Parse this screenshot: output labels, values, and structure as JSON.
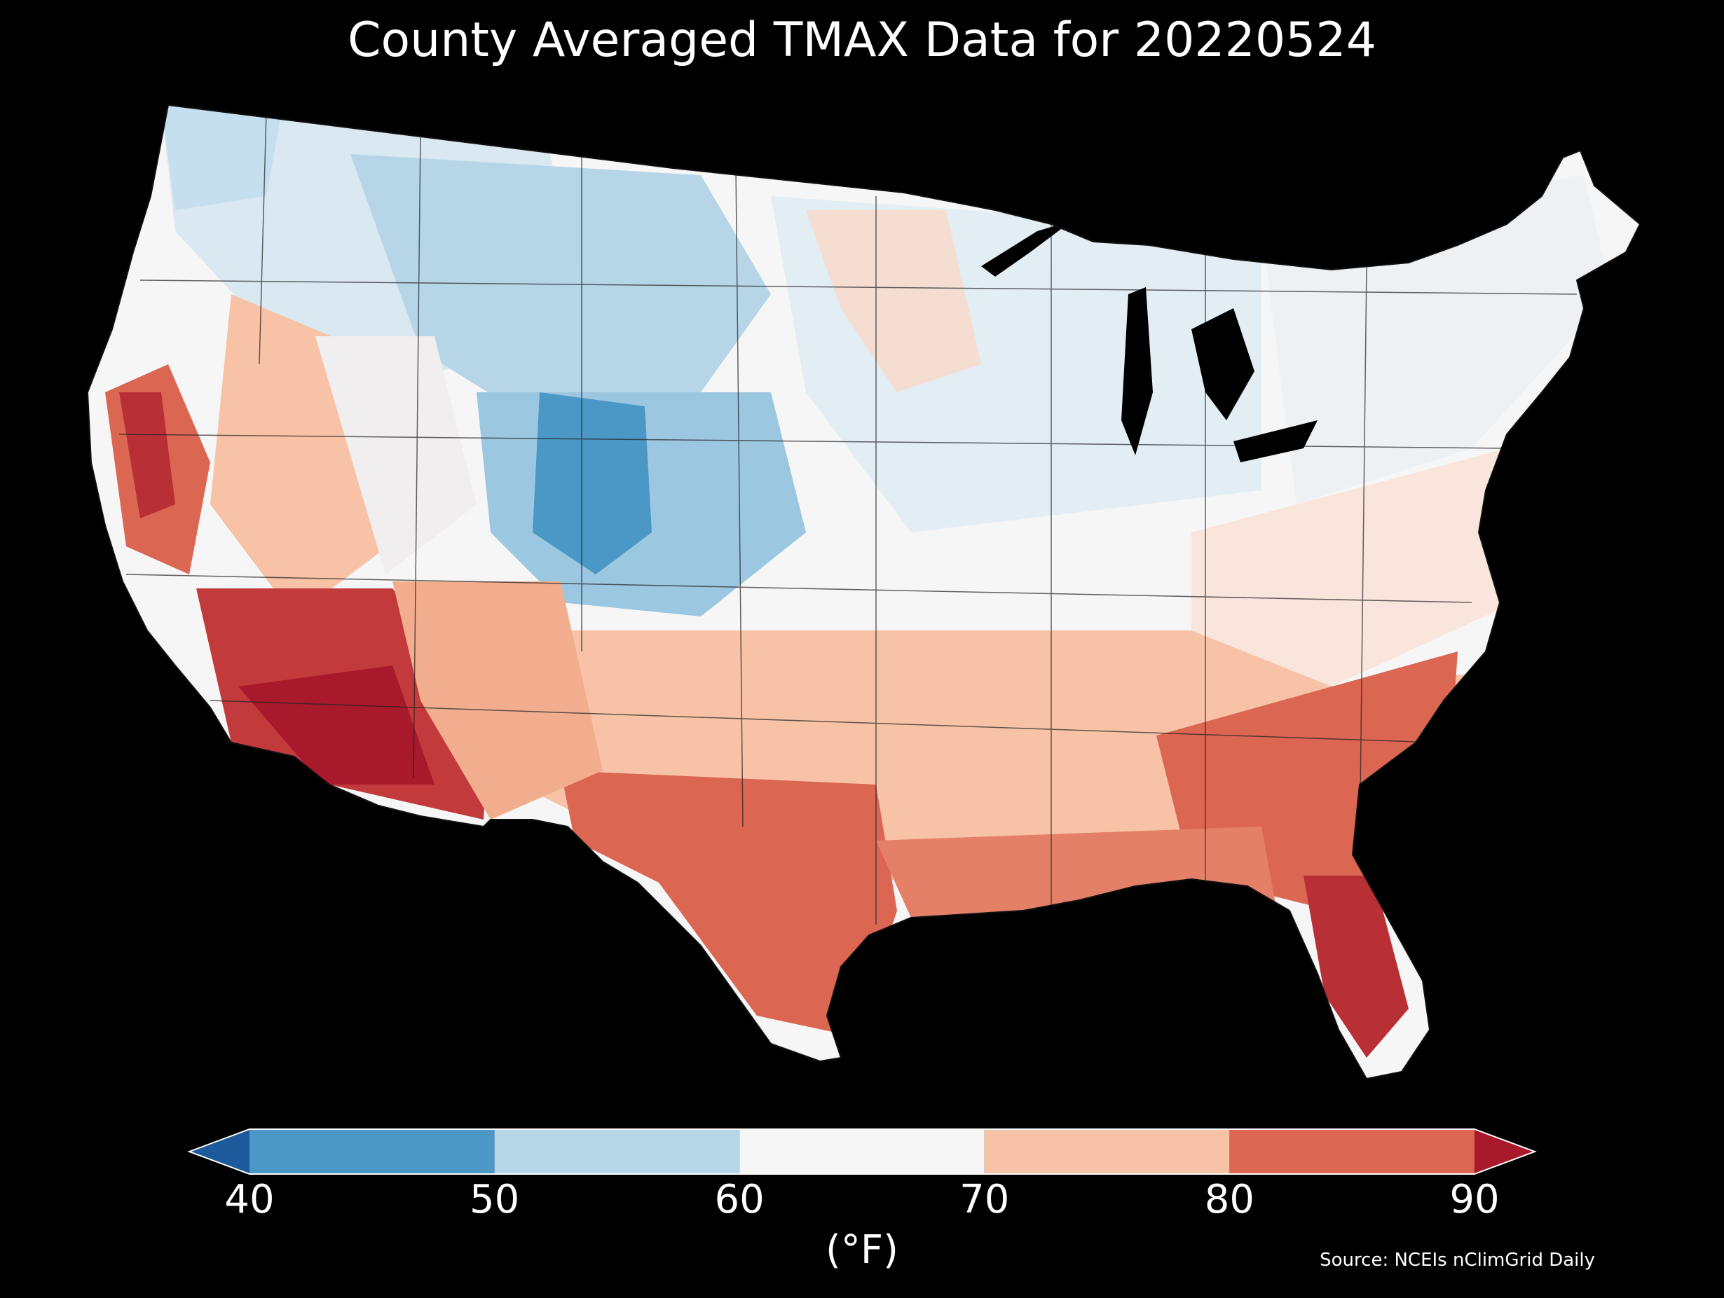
{
  "title": "County Averaged TMAX Data for 20220524",
  "colorbar": {
    "ticks": [
      "40",
      "50",
      "60",
      "70",
      "80",
      "90"
    ],
    "unit_label": "(°F)",
    "bins": [
      {
        "range": "<40",
        "color": "#1c5a9c"
      },
      {
        "range": "40-50",
        "color": "#4b98c7"
      },
      {
        "range": "50-60",
        "color": "#b6d6e8"
      },
      {
        "range": "60-70",
        "color": "#f6f6f6"
      },
      {
        "range": "70-80",
        "color": "#f7c2a6"
      },
      {
        "range": "80-90",
        "color": "#db6652"
      },
      {
        "range": ">90",
        "color": "#a8192b"
      }
    ]
  },
  "source": "Source: NCEIs nClimGrid Daily",
  "map": {
    "region": "contiguous-us-counties",
    "background": "#000000",
    "regional_temperature_bins": {
      "northern-rockies-plains": "50-60",
      "central-rockies": "40-50",
      "pacific-northwest": "50-60",
      "great-basin": "60-70",
      "upper-midwest": "60-70",
      "great-lakes-northeast": "60-70",
      "mid-atlantic": "70-80",
      "central-plains": "60-70",
      "california-interior": "80-90",
      "southwest-desert": ">90",
      "texas": "80-90",
      "gulf-coast": "80-90",
      "southeast": "80-90",
      "florida": ">90"
    }
  }
}
